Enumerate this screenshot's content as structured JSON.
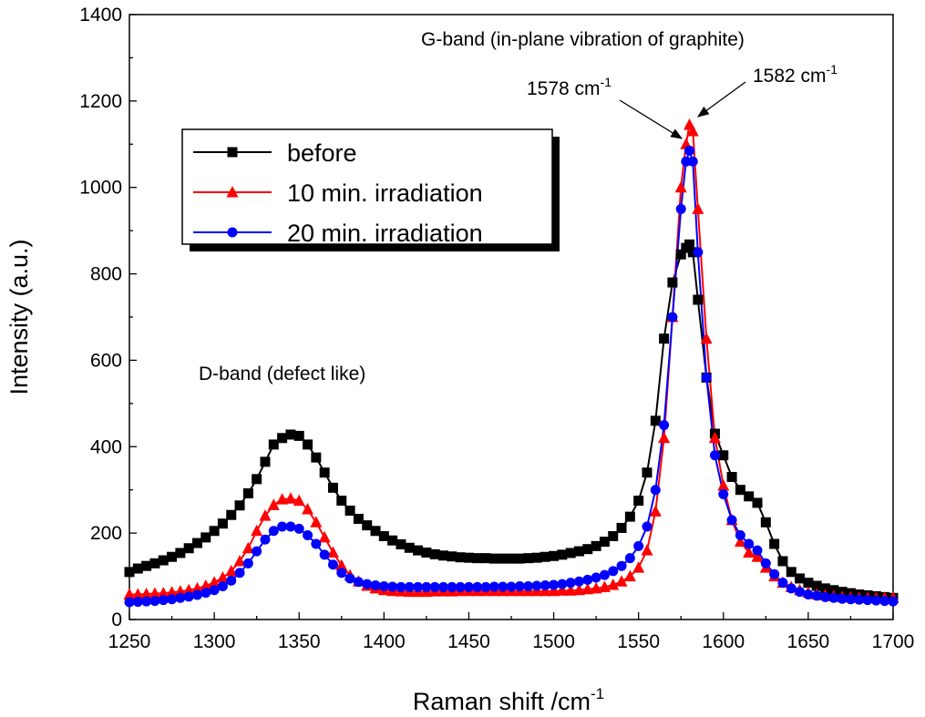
{
  "chart_data": {
    "type": "line",
    "xlabel": "Raman shift /cm",
    "xlabel_sup": "-1",
    "ylabel": "Intensity (a.u.)",
    "xlim": [
      1250,
      1700
    ],
    "ylim": [
      0,
      1400
    ],
    "x_ticks": [
      1250,
      1300,
      1350,
      1400,
      1450,
      1500,
      1550,
      1600,
      1650,
      1700
    ],
    "y_ticks": [
      0,
      200,
      400,
      600,
      800,
      1000,
      1200,
      1400
    ],
    "legend_position": "upper-left",
    "annotations": {
      "g_band": "G-band (in-plane vibration of graphite)",
      "d_band": "D-band (defect like)",
      "peak_1578": {
        "text": "1578 cm",
        "sup": "-1",
        "x": 1578,
        "y": 1100
      },
      "peak_1582": {
        "text": "1582 cm",
        "sup": "-1",
        "x": 1582,
        "y": 1150
      }
    },
    "x": [
      1250,
      1255,
      1260,
      1265,
      1270,
      1275,
      1280,
      1285,
      1290,
      1295,
      1300,
      1305,
      1310,
      1315,
      1320,
      1325,
      1330,
      1335,
      1340,
      1345,
      1350,
      1355,
      1360,
      1365,
      1370,
      1375,
      1380,
      1385,
      1390,
      1395,
      1400,
      1405,
      1410,
      1415,
      1420,
      1425,
      1430,
      1435,
      1440,
      1445,
      1450,
      1455,
      1460,
      1465,
      1470,
      1475,
      1480,
      1485,
      1490,
      1495,
      1500,
      1505,
      1510,
      1515,
      1520,
      1525,
      1530,
      1535,
      1540,
      1545,
      1550,
      1555,
      1560,
      1565,
      1570,
      1575,
      1578,
      1580,
      1582,
      1585,
      1590,
      1595,
      1600,
      1605,
      1610,
      1615,
      1620,
      1625,
      1630,
      1635,
      1640,
      1645,
      1650,
      1655,
      1660,
      1665,
      1670,
      1675,
      1680,
      1685,
      1690,
      1695,
      1700
    ],
    "series": [
      {
        "name": "before",
        "color": "#000000",
        "marker": "square",
        "values": [
          110,
          118,
          124,
          130,
          137,
          145,
          154,
          165,
          177,
          190,
          205,
          222,
          242,
          264,
          292,
          325,
          365,
          405,
          420,
          428,
          425,
          405,
          375,
          340,
          305,
          275,
          252,
          233,
          218,
          205,
          193,
          183,
          174,
          166,
          160,
          155,
          151,
          148,
          146,
          144,
          143,
          142,
          142,
          141,
          141,
          141,
          141,
          142,
          143,
          145,
          147,
          150,
          154,
          158,
          163,
          170,
          180,
          193,
          212,
          238,
          275,
          340,
          460,
          650,
          780,
          845,
          860,
          868,
          850,
          740,
          560,
          430,
          380,
          330,
          300,
          285,
          270,
          225,
          175,
          135,
          110,
          95,
          85,
          78,
          72,
          68,
          64,
          61,
          58,
          56,
          54,
          52,
          50
        ]
      },
      {
        "name": "10 min. irradiation",
        "color": "#ff0000",
        "marker": "triangle",
        "values": [
          58,
          58,
          59,
          60,
          61,
          63,
          65,
          68,
          72,
          78,
          86,
          97,
          112,
          135,
          165,
          205,
          240,
          265,
          278,
          280,
          275,
          255,
          225,
          190,
          155,
          125,
          102,
          88,
          78,
          72,
          68,
          66,
          65,
          64,
          64,
          64,
          65,
          65,
          65,
          66,
          66,
          66,
          66,
          66,
          66,
          66,
          66,
          66,
          66,
          66,
          66,
          67,
          67,
          68,
          70,
          72,
          75,
          80,
          88,
          100,
          120,
          160,
          250,
          420,
          700,
          1000,
          1100,
          1145,
          1130,
          950,
          650,
          420,
          310,
          230,
          180,
          155,
          145,
          120,
          100,
          85,
          75,
          68,
          62,
          58,
          56,
          54,
          52,
          51,
          50,
          50,
          50,
          50,
          50
        ]
      },
      {
        "name": "20 min. irradiation",
        "color": "#0000ff",
        "marker": "circle",
        "values": [
          40,
          41,
          42,
          43,
          45,
          47,
          50,
          53,
          57,
          62,
          68,
          77,
          90,
          108,
          130,
          158,
          185,
          205,
          215,
          215,
          210,
          195,
          175,
          150,
          127,
          108,
          95,
          87,
          82,
          79,
          77,
          76,
          75,
          75,
          75,
          75,
          75,
          75,
          75,
          75,
          75,
          75,
          75,
          76,
          76,
          76,
          77,
          77,
          78,
          79,
          80,
          82,
          85,
          88,
          92,
          97,
          103,
          112,
          124,
          142,
          170,
          215,
          300,
          450,
          700,
          950,
          1060,
          1085,
          1060,
          850,
          560,
          380,
          290,
          230,
          195,
          175,
          160,
          130,
          105,
          85,
          72,
          64,
          58,
          55,
          52,
          50,
          48,
          47,
          46,
          45,
          44,
          43,
          42
        ]
      }
    ]
  }
}
